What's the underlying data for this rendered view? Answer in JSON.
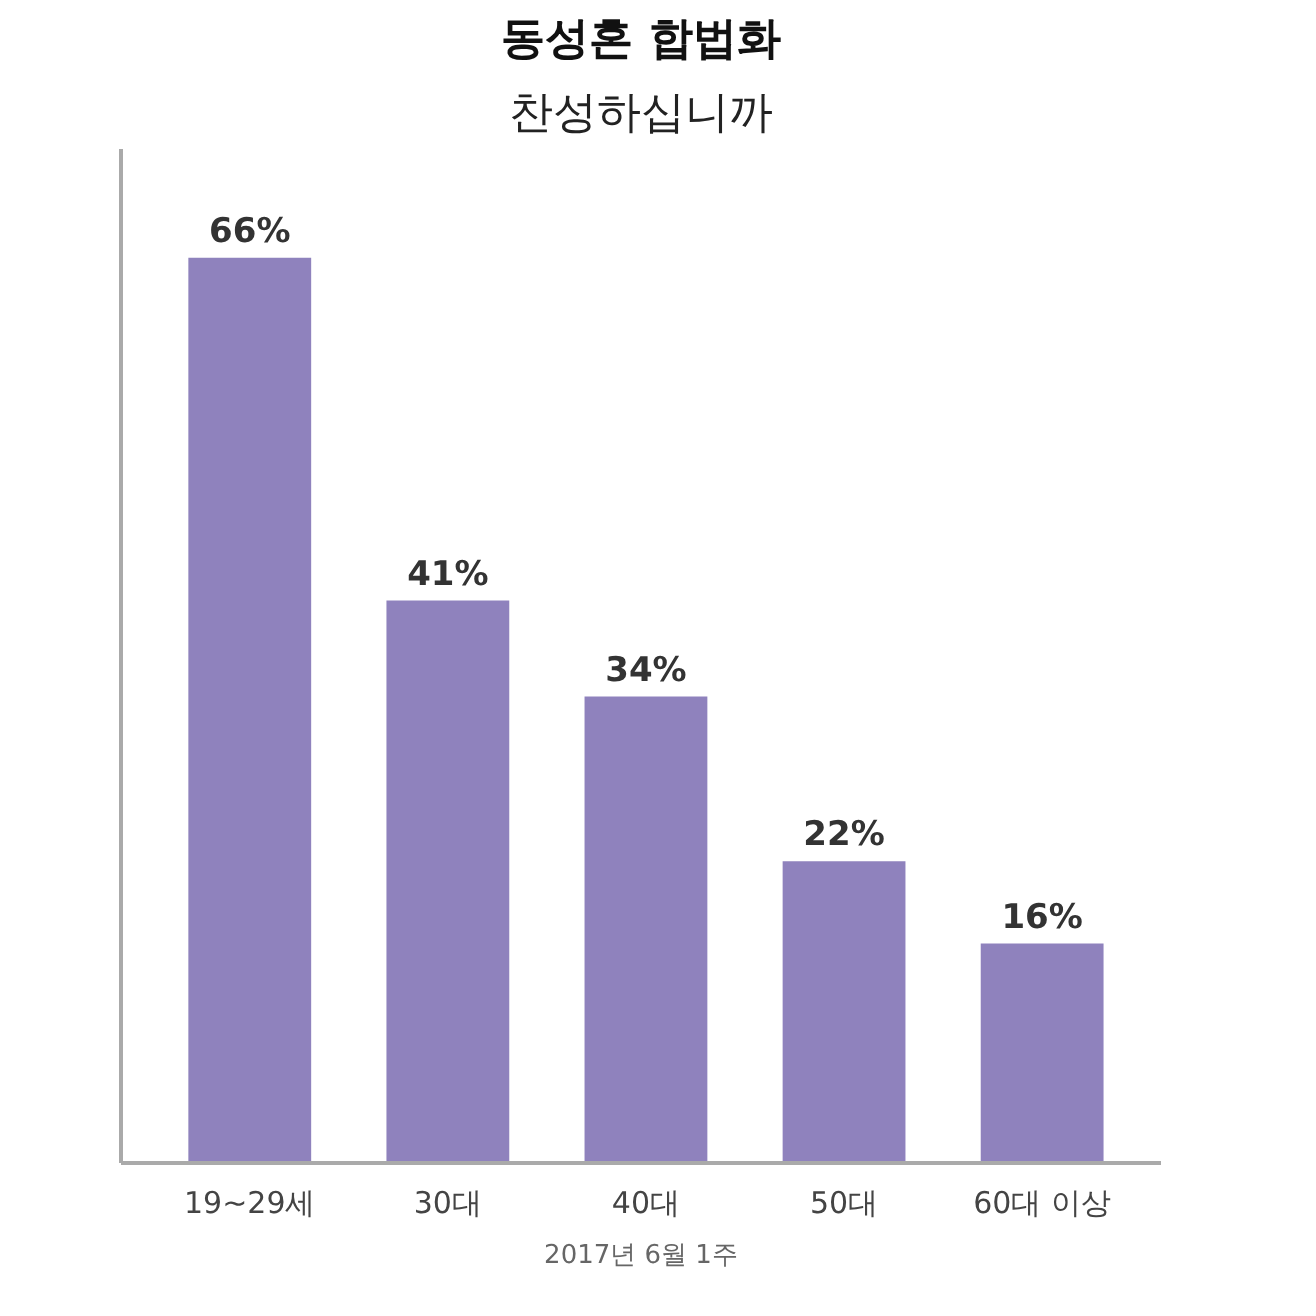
{
  "chart_data": {
    "type": "bar",
    "title": "동성혼 합법화",
    "subtitle": "찬성하십니까",
    "categories": [
      "19~29세",
      "30대",
      "40대",
      "50대",
      "60대 이상"
    ],
    "values": [
      66,
      41,
      34,
      22,
      16
    ],
    "value_labels": [
      "66%",
      "41%",
      "34%",
      "22%",
      "16%"
    ],
    "color": "#8f82bd",
    "tick_labels": "x",
    "grid": false,
    "annotations": [
      "2017년 6월 1주"
    ]
  }
}
